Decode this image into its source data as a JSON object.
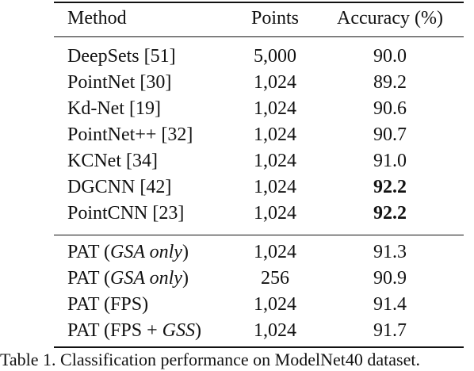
{
  "table": {
    "header": [
      "Method",
      "Points",
      "Accuracy (%)"
    ],
    "groups": [
      [
        {
          "method": [
            {
              "text": "DeepSets [51]"
            }
          ],
          "points": "5,000",
          "accuracy": "90.0"
        },
        {
          "method": [
            {
              "text": "PointNet [30]"
            }
          ],
          "points": "1,024",
          "accuracy": "89.2"
        },
        {
          "method": [
            {
              "text": "Kd-Net [19]"
            }
          ],
          "points": "1,024",
          "accuracy": "90.6"
        },
        {
          "method": [
            {
              "text": "PointNet++ [32]"
            }
          ],
          "points": "1,024",
          "accuracy": "90.7"
        },
        {
          "method": [
            {
              "text": "KCNet [34]"
            }
          ],
          "points": "1,024",
          "accuracy": "91.0"
        },
        {
          "method": [
            {
              "text": "DGCNN [42]"
            }
          ],
          "points": "1,024",
          "accuracy": "92.2",
          "bold": true
        },
        {
          "method": [
            {
              "text": "PointCNN [23]"
            }
          ],
          "points": "1,024",
          "accuracy": "92.2",
          "bold": true
        }
      ],
      [
        {
          "method": [
            {
              "text": "PAT ("
            },
            {
              "text": "GSA only",
              "italic": true
            },
            {
              "text": ")"
            }
          ],
          "points": "1,024",
          "accuracy": "91.3"
        },
        {
          "method": [
            {
              "text": "PAT ("
            },
            {
              "text": "GSA only",
              "italic": true
            },
            {
              "text": ")"
            }
          ],
          "points": "256",
          "accuracy": "90.9"
        },
        {
          "method": [
            {
              "text": "PAT (FPS)"
            }
          ],
          "points": "1,024",
          "accuracy": "91.4"
        },
        {
          "method": [
            {
              "text": "PAT (FPS + "
            },
            {
              "text": "GSS",
              "italic": true
            },
            {
              "text": ")"
            }
          ],
          "points": "1,024",
          "accuracy": "91.7"
        }
      ]
    ]
  },
  "caption": "Table 1. Classification performance on ModelNet40 dataset."
}
